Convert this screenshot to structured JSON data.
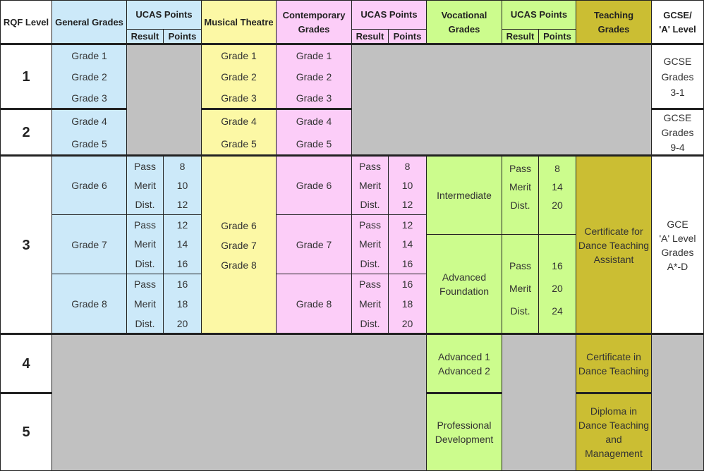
{
  "headers": {
    "rqf": "RQF Level",
    "general": "General Grades",
    "ucas": "UCAS Points",
    "result": "Result",
    "points": "Points",
    "musical": "Musical Theatre",
    "contemporary": "Contemporary Grades",
    "ucas2": "UCAS Points",
    "result2": "Result",
    "points2": "Points",
    "vocational": "Vocational Grades",
    "ucas3": "UCAS Points",
    "result3": "Result",
    "points3": "Points",
    "teaching": "Teaching Grades",
    "gcse": "GCSE/ 'A' Level"
  },
  "levels": [
    "1",
    "2",
    "3",
    "4",
    "5"
  ],
  "general": {
    "level1": [
      "Grade 1",
      "Grade 2",
      "Grade 3"
    ],
    "level2": [
      "Grade 4",
      "Grade 5"
    ],
    "level3": [
      "Grade 6",
      "Grade 7",
      "Grade 8"
    ]
  },
  "musical": {
    "level1": [
      "Grade 1",
      "Grade 2",
      "Grade 3"
    ],
    "level2": [
      "Grade 4",
      "Grade 5"
    ],
    "level3": [
      "Grade 6",
      "Grade 7",
      "Grade 8"
    ]
  },
  "contemporary": {
    "level1": [
      "Grade 1",
      "Grade 2",
      "Grade 3"
    ],
    "level2": [
      "Grade 4",
      "Grade 5"
    ],
    "level3": [
      "Grade 6",
      "Grade 7",
      "Grade 8"
    ]
  },
  "results": [
    "Pass",
    "Merit",
    "Dist."
  ],
  "ucas_general": [
    [
      "8",
      "10",
      "12"
    ],
    [
      "12",
      "14",
      "16"
    ],
    [
      "16",
      "18",
      "20"
    ]
  ],
  "ucas_contemporary": [
    [
      "8",
      "10",
      "12"
    ],
    [
      "12",
      "14",
      "16"
    ],
    [
      "16",
      "18",
      "20"
    ]
  ],
  "vocational": {
    "intermediate": "Intermediate",
    "advanced_foundation": "Advanced Foundation",
    "advanced12": [
      "Advanced 1",
      "Advanced 2"
    ],
    "professional": "Professional Development",
    "ucas_intermediate": [
      "8",
      "14",
      "20"
    ],
    "ucas_advanced": [
      "16",
      "20",
      "24"
    ]
  },
  "teaching": {
    "assistant": "Certificate for Dance Teaching Assistant",
    "certificate": "Certificate in Dance Teaching",
    "diploma": "Diploma in Dance Teaching and Management"
  },
  "gcse": {
    "level1": [
      "GCSE",
      "Grades",
      "3-1"
    ],
    "level2": [
      "GCSE",
      "Grades",
      "9-4"
    ],
    "level3": [
      "GCE",
      "'A' Level",
      "Grades",
      "A*-D"
    ]
  }
}
